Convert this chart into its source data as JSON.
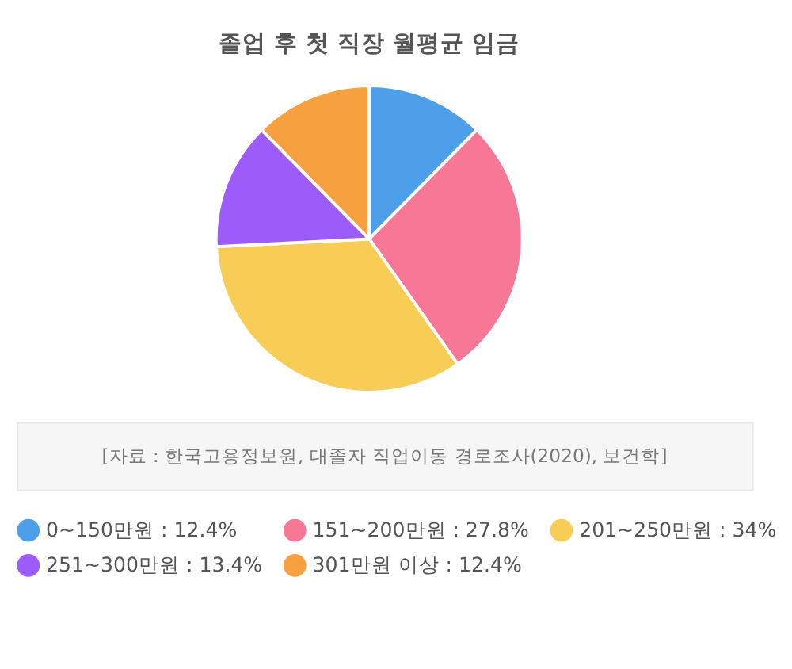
{
  "chart_data": {
    "type": "pie",
    "title": "졸업 후 첫 직장 월평균 임금",
    "categories": [
      "0~150만원",
      "151~200만원",
      "201~250만원",
      "251~300만원",
      "301만원 이상"
    ],
    "values": [
      12.4,
      27.8,
      34,
      13.4,
      12.4
    ],
    "value_labels": [
      "12.4%",
      "27.8%",
      "34%",
      "13.4%",
      "12.4%"
    ],
    "colors": [
      "#4e9fea",
      "#f77796",
      "#f8cd55",
      "#9b5cf9",
      "#f7a040"
    ],
    "legend": "bottom",
    "annotations": [
      "[자료 : 한국고용정보원, 대졸자 직업이동 경로조사(2020), 보건학]"
    ]
  }
}
